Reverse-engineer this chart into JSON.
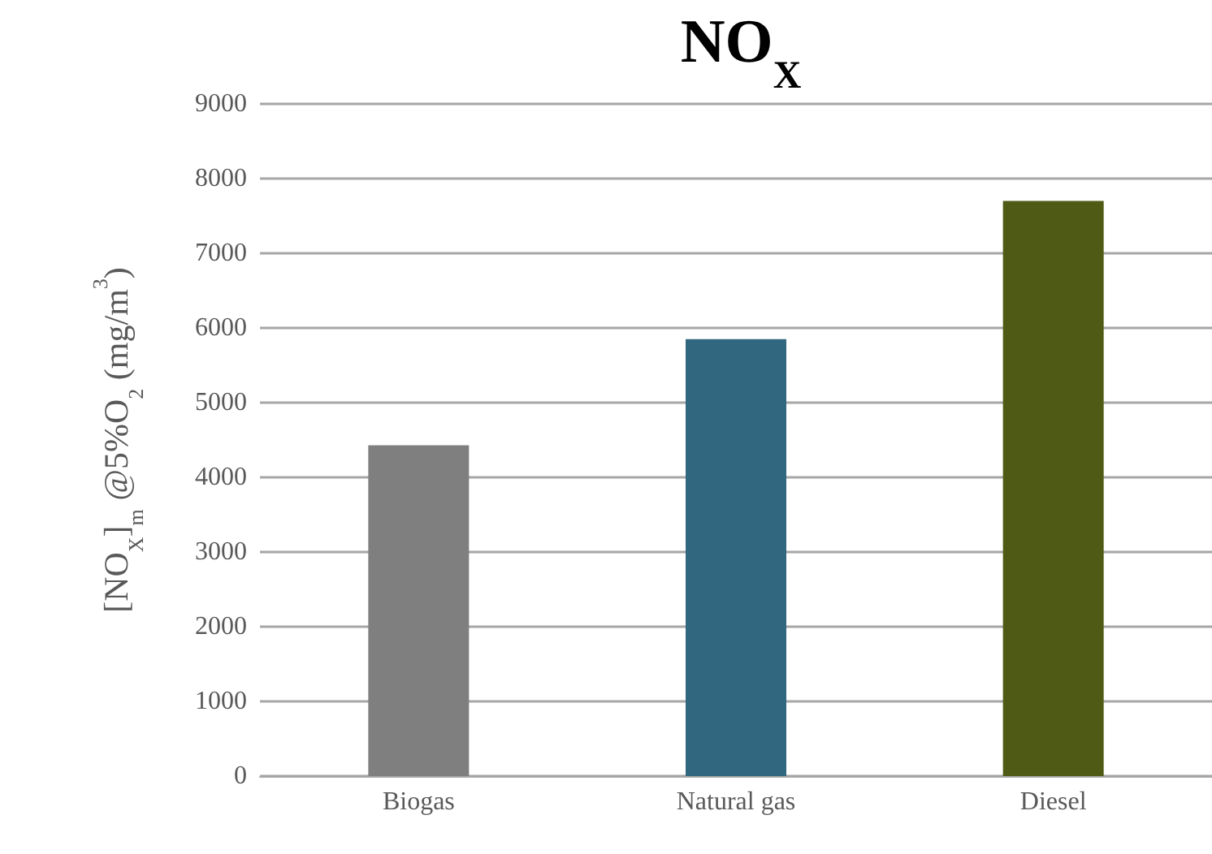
{
  "chart_data": {
    "type": "bar",
    "title": "NO$_{X}$",
    "ylabel": "[NO$_{X}$]$_{m}$ @5%O$_{2}$ (mg/m$^{3}$)",
    "categories": [
      "Biogas",
      "Natural gas",
      "Diesel"
    ],
    "values": [
      4430,
      5850,
      7700
    ],
    "colors": [
      "#7f7f7f",
      "#31687f",
      "#4f5a14"
    ],
    "ylim": [
      0,
      9000
    ],
    "yticks": [
      0,
      1000,
      2000,
      3000,
      4000,
      5000,
      6000,
      7000,
      8000,
      9000
    ],
    "grid": "y"
  }
}
